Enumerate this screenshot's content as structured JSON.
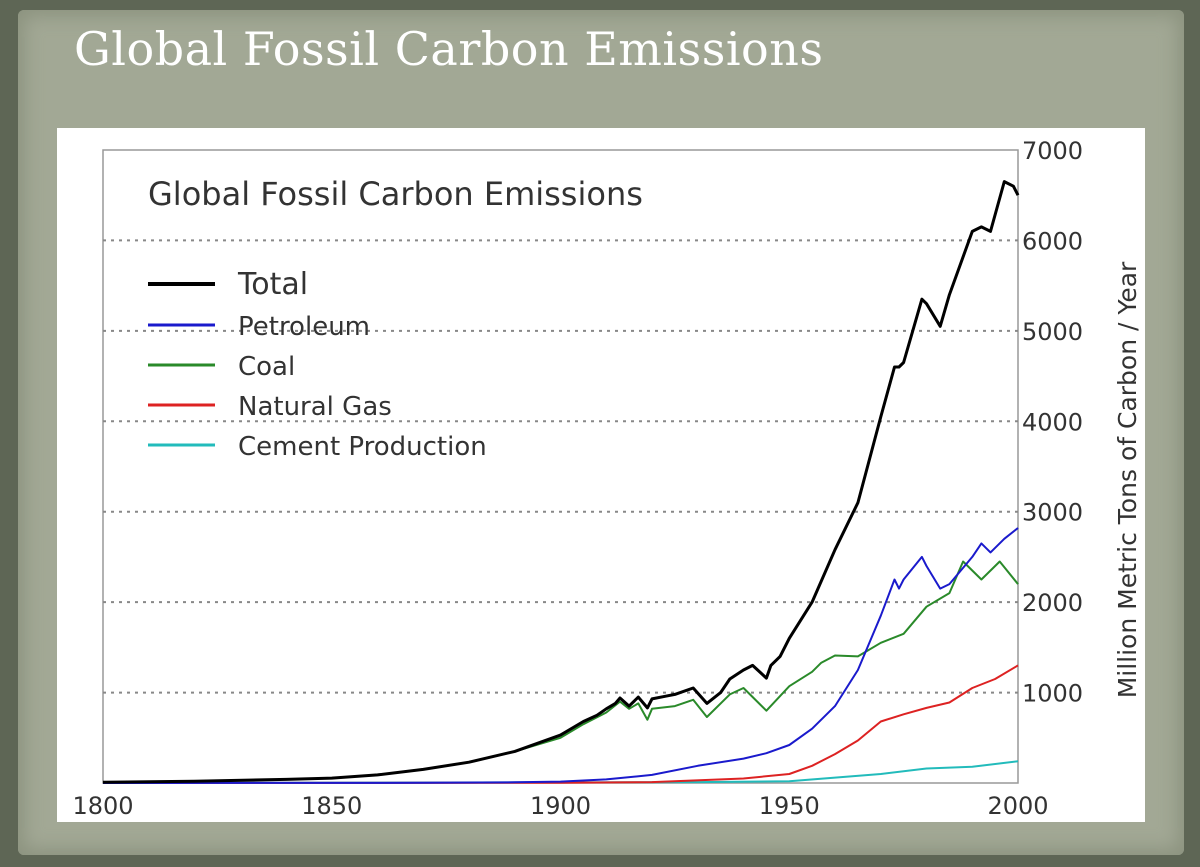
{
  "slide_title": "Global Fossil Carbon Emissions",
  "chart_data": {
    "type": "line",
    "title": "Global Fossil Carbon Emissions",
    "xlabel": "",
    "ylabel": "Million Metric Tons of Carbon / Year",
    "xlim": [
      1800,
      2000
    ],
    "ylim": [
      0,
      7000
    ],
    "x_ticks": [
      "1800",
      "1850",
      "1900",
      "1950",
      "2000"
    ],
    "y_ticks": [
      "1000",
      "2000",
      "3000",
      "4000",
      "5000",
      "6000",
      "7000"
    ],
    "grid": "horizontal dotted",
    "legend_position": "top-left",
    "series": [
      {
        "name": "Total",
        "color": "#000000",
        "width": 3,
        "x": [
          1800,
          1820,
          1840,
          1850,
          1860,
          1870,
          1880,
          1890,
          1900,
          1905,
          1908,
          1910,
          1912,
          1913,
          1915,
          1917,
          1919,
          1920,
          1923,
          1925,
          1929,
          1932,
          1935,
          1937,
          1940,
          1942,
          1945,
          1946,
          1948,
          1950,
          1955,
          1960,
          1965,
          1970,
          1973,
          1974,
          1975,
          1979,
          1980,
          1983,
          1985,
          1990,
          1992,
          1994,
          1997,
          1999,
          2000
        ],
        "y": [
          8,
          20,
          40,
          54,
          90,
          150,
          230,
          350,
          530,
          680,
          750,
          820,
          880,
          940,
          850,
          950,
          830,
          930,
          960,
          980,
          1050,
          880,
          1000,
          1150,
          1250,
          1300,
          1160,
          1300,
          1400,
          1600,
          2000,
          2580,
          3100,
          4050,
          4600,
          4600,
          4650,
          5350,
          5300,
          5050,
          5400,
          6100,
          6150,
          6100,
          6650,
          6600,
          6500
        ]
      },
      {
        "name": "Petroleum",
        "color": "#1a1acc",
        "width": 2,
        "x": [
          1800,
          1870,
          1890,
          1900,
          1910,
          1920,
          1930,
          1940,
          1945,
          1950,
          1955,
          1960,
          1965,
          1970,
          1973,
          1974,
          1975,
          1979,
          1980,
          1983,
          1985,
          1990,
          1992,
          1994,
          1997,
          2000
        ],
        "y": [
          0,
          2,
          8,
          15,
          40,
          90,
          190,
          270,
          330,
          420,
          600,
          850,
          1250,
          1850,
          2250,
          2150,
          2250,
          2500,
          2400,
          2150,
          2200,
          2500,
          2650,
          2550,
          2700,
          2820
        ]
      },
      {
        "name": "Coal",
        "color": "#2a8a2a",
        "width": 2,
        "x": [
          1800,
          1820,
          1840,
          1850,
          1860,
          1870,
          1880,
          1890,
          1900,
          1905,
          1910,
          1913,
          1915,
          1917,
          1919,
          1920,
          1925,
          1929,
          1932,
          1937,
          1940,
          1945,
          1950,
          1955,
          1957,
          1960,
          1965,
          1970,
          1975,
          1980,
          1985,
          1988,
          1992,
          1996,
          2000
        ],
        "y": [
          8,
          20,
          40,
          54,
          90,
          150,
          230,
          350,
          500,
          650,
          780,
          900,
          820,
          880,
          700,
          820,
          850,
          920,
          730,
          980,
          1050,
          800,
          1070,
          1230,
          1330,
          1410,
          1400,
          1550,
          1650,
          1950,
          2100,
          2450,
          2250,
          2450,
          2200
        ]
      },
      {
        "name": "Natural Gas",
        "color": "#dd2222",
        "width": 2,
        "x": [
          1800,
          1900,
          1920,
          1940,
          1950,
          1955,
          1960,
          1965,
          1970,
          1975,
          1980,
          1985,
          1990,
          1995,
          2000
        ],
        "y": [
          0,
          3,
          10,
          50,
          100,
          190,
          320,
          470,
          680,
          760,
          830,
          890,
          1050,
          1150,
          1300
        ]
      },
      {
        "name": "Cement Production",
        "color": "#22bbbb",
        "width": 2,
        "x": [
          1800,
          1930,
          1950,
          1960,
          1970,
          1980,
          1990,
          2000
        ],
        "y": [
          0,
          10,
          20,
          60,
          100,
          160,
          180,
          240
        ]
      }
    ]
  }
}
